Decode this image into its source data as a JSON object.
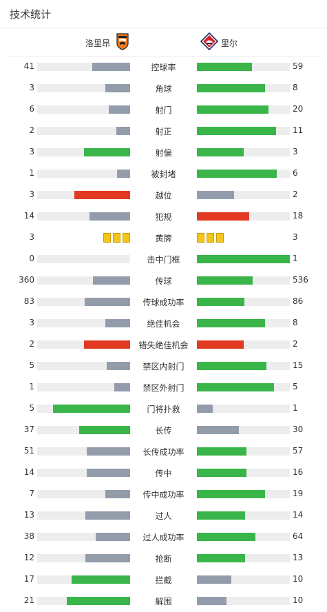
{
  "section_title": "技术统计",
  "home": {
    "name": "洛里昂",
    "logo_icon": "fc-lorient-crest-icon"
  },
  "away": {
    "name": "里尔",
    "logo_icon": "losc-lille-crest-icon"
  },
  "colors": {
    "win": "#39b54a",
    "lose": "#939cab",
    "negative": "#e13a21",
    "track": "#ededee",
    "card": "#f5c518"
  },
  "stats": [
    {
      "label": "控球率",
      "home": "41",
      "away": "59",
      "home_share": 0.41,
      "away_share": 0.59,
      "home_color": "lose",
      "away_color": "win"
    },
    {
      "label": "角球",
      "home": "3",
      "away": "8",
      "home_share": 0.27,
      "away_share": 0.73,
      "home_color": "lose",
      "away_color": "win"
    },
    {
      "label": "射门",
      "home": "6",
      "away": "20",
      "home_share": 0.23,
      "away_share": 0.77,
      "home_color": "lose",
      "away_color": "win"
    },
    {
      "label": "射正",
      "home": "2",
      "away": "11",
      "home_share": 0.15,
      "away_share": 0.85,
      "home_color": "lose",
      "away_color": "win"
    },
    {
      "label": "射偏",
      "home": "3",
      "away": "3",
      "home_share": 0.5,
      "away_share": 0.5,
      "home_color": "win",
      "away_color": "win"
    },
    {
      "label": "被封堵",
      "home": "1",
      "away": "6",
      "home_share": 0.14,
      "away_share": 0.86,
      "home_color": "lose",
      "away_color": "win"
    },
    {
      "label": "越位",
      "home": "3",
      "away": "2",
      "home_share": 0.6,
      "away_share": 0.4,
      "home_color": "negative",
      "away_color": "lose"
    },
    {
      "label": "犯规",
      "home": "14",
      "away": "18",
      "home_share": 0.44,
      "away_share": 0.56,
      "home_color": "lose",
      "away_color": "negative"
    },
    {
      "label": "黄牌",
      "home": "3",
      "away": "3",
      "type": "cards",
      "home_cards": 3,
      "away_cards": 3
    },
    {
      "label": "击中门框",
      "home": "0",
      "away": "1",
      "home_share": 0.0,
      "away_share": 1.0,
      "home_color": "lose",
      "away_color": "win"
    },
    {
      "label": "传球",
      "home": "360",
      "away": "536",
      "home_share": 0.4,
      "away_share": 0.6,
      "home_color": "lose",
      "away_color": "win"
    },
    {
      "label": "传球成功率",
      "home": "83",
      "away": "86",
      "home_share": 0.49,
      "away_share": 0.51,
      "home_color": "lose",
      "away_color": "win"
    },
    {
      "label": "绝佳机会",
      "home": "3",
      "away": "8",
      "home_share": 0.27,
      "away_share": 0.73,
      "home_color": "lose",
      "away_color": "win"
    },
    {
      "label": "错失绝佳机会",
      "home": "2",
      "away": "2",
      "home_share": 0.5,
      "away_share": 0.5,
      "home_color": "negative",
      "away_color": "negative"
    },
    {
      "label": "禁区内射门",
      "home": "5",
      "away": "15",
      "home_share": 0.25,
      "away_share": 0.75,
      "home_color": "lose",
      "away_color": "win"
    },
    {
      "label": "禁区外射门",
      "home": "1",
      "away": "5",
      "home_share": 0.17,
      "away_share": 0.83,
      "home_color": "lose",
      "away_color": "win"
    },
    {
      "label": "门将扑救",
      "home": "5",
      "away": "1",
      "home_share": 0.83,
      "away_share": 0.17,
      "home_color": "win",
      "away_color": "lose"
    },
    {
      "label": "长传",
      "home": "37",
      "away": "30",
      "home_share": 0.55,
      "away_share": 0.45,
      "home_color": "win",
      "away_color": "lose"
    },
    {
      "label": "长传成功率",
      "home": "51",
      "away": "57",
      "home_share": 0.47,
      "away_share": 0.53,
      "home_color": "lose",
      "away_color": "win"
    },
    {
      "label": "传中",
      "home": "14",
      "away": "16",
      "home_share": 0.47,
      "away_share": 0.53,
      "home_color": "lose",
      "away_color": "win"
    },
    {
      "label": "传中成功率",
      "home": "7",
      "away": "19",
      "home_share": 0.27,
      "away_share": 0.73,
      "home_color": "lose",
      "away_color": "win"
    },
    {
      "label": "过人",
      "home": "13",
      "away": "14",
      "home_share": 0.48,
      "away_share": 0.52,
      "home_color": "lose",
      "away_color": "win"
    },
    {
      "label": "过人成功率",
      "home": "38",
      "away": "64",
      "home_share": 0.37,
      "away_share": 0.63,
      "home_color": "lose",
      "away_color": "win"
    },
    {
      "label": "抢断",
      "home": "12",
      "away": "13",
      "home_share": 0.48,
      "away_share": 0.52,
      "home_color": "lose",
      "away_color": "win"
    },
    {
      "label": "拦截",
      "home": "17",
      "away": "10",
      "home_share": 0.63,
      "away_share": 0.37,
      "home_color": "win",
      "away_color": "lose"
    },
    {
      "label": "解围",
      "home": "21",
      "away": "10",
      "home_share": 0.68,
      "away_share": 0.32,
      "home_color": "win",
      "away_color": "lose"
    }
  ]
}
